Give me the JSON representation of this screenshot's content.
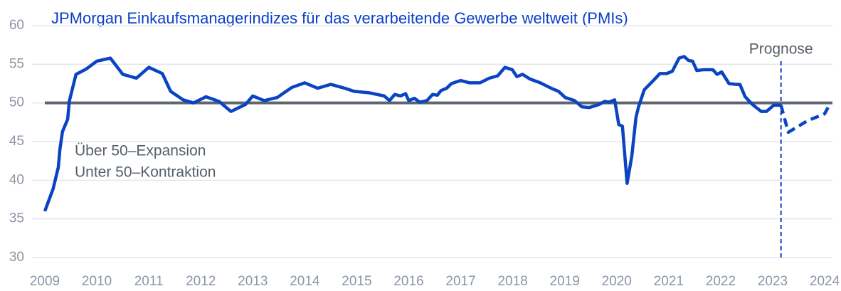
{
  "chart_data": {
    "type": "line",
    "title": "JPMorgan Einkaufsmanagerindizes für das verarbeitende Gewerbe weltweit (PMIs)",
    "title_color": "#0a3fc6",
    "series": [
      {
        "color": "#0a44c2",
        "dashed": false,
        "x": [
          2009.0,
          2009.16,
          2009.26,
          2009.29,
          2009.34,
          2009.44,
          2009.47,
          2009.6,
          2009.8,
          2010.0,
          2010.26,
          2010.5,
          2010.76,
          2011.0,
          2011.26,
          2011.42,
          2011.66,
          2011.86,
          2012.1,
          2012.35,
          2012.58,
          2012.86,
          2013.0,
          2013.22,
          2013.47,
          2013.75,
          2014.0,
          2014.25,
          2014.5,
          2014.77,
          2014.95,
          2015.25,
          2015.53,
          2015.63,
          2015.73,
          2015.84,
          2015.94,
          2016.0,
          2016.11,
          2016.21,
          2016.35,
          2016.46,
          2016.55,
          2016.62,
          2016.73,
          2016.82,
          2017.0,
          2017.17,
          2017.37,
          2017.55,
          2017.71,
          2017.85,
          2017.99,
          2018.08,
          2018.19,
          2018.33,
          2018.53,
          2018.74,
          2018.88,
          2019.01,
          2019.19,
          2019.33,
          2019.47,
          2019.66,
          2019.77,
          2019.85,
          2019.96,
          2020.04,
          2020.11,
          2020.2,
          2020.29,
          2020.37,
          2020.42,
          2020.53,
          2020.72,
          2020.83,
          2020.96,
          2021.07,
          2021.2,
          2021.3,
          2021.38,
          2021.46,
          2021.54,
          2021.68,
          2021.85,
          2021.93,
          2022.02,
          2022.16,
          2022.3,
          2022.37,
          2022.47,
          2022.61,
          2022.78,
          2022.88,
          2023.02,
          2023.16
        ],
        "values": [
          36.0,
          38.9,
          41.7,
          44.0,
          46.3,
          47.9,
          50.2,
          53.7,
          54.4,
          55.4,
          55.8,
          53.7,
          53.2,
          54.6,
          53.8,
          51.5,
          50.4,
          50.0,
          50.8,
          50.2,
          48.9,
          49.8,
          50.9,
          50.3,
          50.7,
          52.0,
          52.6,
          51.9,
          52.4,
          51.9,
          51.5,
          51.3,
          50.9,
          50.3,
          51.1,
          50.9,
          51.2,
          50.3,
          50.6,
          50.1,
          50.3,
          51.1,
          51.0,
          51.6,
          51.9,
          52.5,
          52.9,
          52.6,
          52.6,
          53.2,
          53.5,
          54.6,
          54.3,
          53.4,
          53.7,
          53.1,
          52.6,
          51.9,
          51.5,
          50.7,
          50.3,
          49.5,
          49.4,
          49.8,
          50.2,
          50.1,
          50.4,
          47.2,
          47.0,
          39.6,
          43.1,
          48.1,
          49.5,
          51.7,
          53.0,
          53.8,
          53.8,
          54.1,
          55.8,
          56.0,
          55.5,
          55.4,
          54.2,
          54.3,
          54.3,
          53.7,
          54.0,
          52.5,
          52.4,
          52.4,
          50.8,
          49.8,
          48.9,
          48.9,
          49.7,
          49.7
        ]
      },
      {
        "color": "#0a44c2",
        "dashed": true,
        "x": [
          2023.16,
          2023.3,
          2023.67,
          2024.0,
          2024.11
        ],
        "values": [
          49.7,
          46.2,
          47.7,
          48.6,
          50.0
        ]
      }
    ],
    "xlim": [
      2009,
      2024.15
    ],
    "xticks": [
      2009,
      2010,
      2011,
      2012,
      2013,
      2014,
      2015,
      2016,
      2017,
      2018,
      2019,
      2020,
      2021,
      2022,
      2023,
      2024
    ],
    "ylim": [
      30,
      60
    ],
    "yticks": [
      30,
      35,
      40,
      45,
      50,
      55,
      60
    ],
    "grid": true,
    "reference_line": {
      "value": 50,
      "color": "#5f6670"
    },
    "forecast_line": {
      "value": 2023.16,
      "label": "Prognose",
      "color": "#0a44c2"
    },
    "annotations": [
      "Über 50–Expansion",
      "Unter 50–Kontraktion"
    ]
  }
}
